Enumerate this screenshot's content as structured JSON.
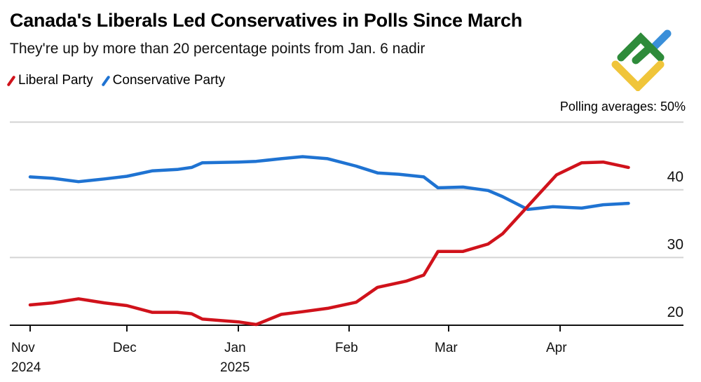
{
  "title": "Canada's Liberals Led Conservatives in Polls Since March",
  "subtitle": "They're up by more than 20 percentage points from Jan. 6 nadir",
  "note": "Polling averages: 50%",
  "colors": {
    "liberal": "#d0121b",
    "conservative": "#1f73d2",
    "grid": "#d4d4d4",
    "axis": "#111111"
  },
  "logo": {
    "colors": [
      "#2e8b3a",
      "#3a8fd9",
      "#f0c53a"
    ]
  },
  "chart_data": {
    "type": "line",
    "title": "Canada's Liberals Led Conservatives in Polls Since March",
    "ylim": [
      20,
      50
    ],
    "yticks": [
      20,
      30,
      40,
      50
    ],
    "ytick_labels": [
      "20",
      "30",
      "40",
      ""
    ],
    "grid": true,
    "legend": "top-left",
    "xticks": [
      {
        "date": "2024-11-01",
        "label": "Nov",
        "sub": "2024"
      },
      {
        "date": "2024-12-01",
        "label": "Dec",
        "sub": ""
      },
      {
        "date": "2025-01-01",
        "label": "Jan",
        "sub": "2025"
      },
      {
        "date": "2025-02-01",
        "label": "Feb",
        "sub": ""
      },
      {
        "date": "2025-03-01",
        "label": "Mar",
        "sub": ""
      },
      {
        "date": "2025-04-01",
        "label": "Apr",
        "sub": ""
      }
    ],
    "series": [
      {
        "name": "Liberal Party",
        "color": "#d0121b",
        "x": [
          "2024-11-01",
          "2024-11-08",
          "2024-11-16",
          "2024-11-24",
          "2024-12-01",
          "2024-12-08",
          "2024-12-15",
          "2024-12-19",
          "2024-12-22",
          "2025-01-01",
          "2025-01-06",
          "2025-01-13",
          "2025-01-19",
          "2025-01-26",
          "2025-02-03",
          "2025-02-09",
          "2025-02-17",
          "2025-02-22",
          "2025-02-26",
          "2025-03-05",
          "2025-03-12",
          "2025-03-16",
          "2025-03-31",
          "2025-04-07",
          "2025-04-13",
          "2025-04-20"
        ],
        "y": [
          23.0,
          23.3,
          23.9,
          23.3,
          22.9,
          21.9,
          21.9,
          21.7,
          20.9,
          20.5,
          20.1,
          21.6,
          22.0,
          22.5,
          23.4,
          25.6,
          26.5,
          27.4,
          30.9,
          30.9,
          32.0,
          33.5,
          42.2,
          44.0,
          44.1,
          43.3
        ]
      },
      {
        "name": "Conservative Party",
        "color": "#1f73d2",
        "x": [
          "2024-11-01",
          "2024-11-08",
          "2024-11-16",
          "2024-11-24",
          "2024-12-01",
          "2024-12-08",
          "2024-12-15",
          "2024-12-19",
          "2024-12-22",
          "2025-01-01",
          "2025-01-06",
          "2025-01-13",
          "2025-01-19",
          "2025-01-26",
          "2025-02-03",
          "2025-02-09",
          "2025-02-15",
          "2025-02-22",
          "2025-02-26",
          "2025-03-05",
          "2025-03-12",
          "2025-03-16",
          "2025-03-23",
          "2025-03-30",
          "2025-04-07",
          "2025-04-13",
          "2025-04-20"
        ],
        "y": [
          41.9,
          41.7,
          41.2,
          41.6,
          42.0,
          42.8,
          43.0,
          43.3,
          44.0,
          44.1,
          44.2,
          44.6,
          44.9,
          44.6,
          43.5,
          42.5,
          42.3,
          41.9,
          40.3,
          40.4,
          39.9,
          39.0,
          37.1,
          37.5,
          37.3,
          37.8,
          38.0
        ]
      }
    ]
  }
}
